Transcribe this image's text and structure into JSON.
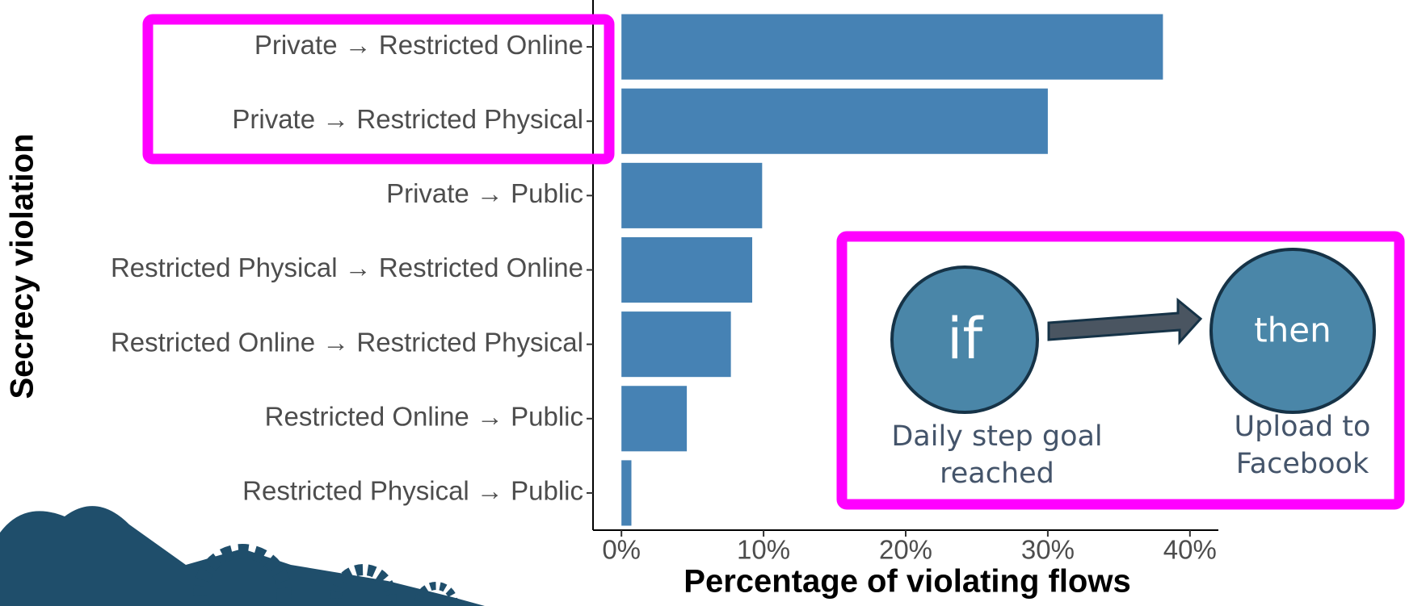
{
  "chart_data": {
    "type": "barh",
    "x_label": "Percentage of violating flows",
    "y_label": "Secrecy violation",
    "categories": [
      "Private → Restricted Online",
      "Private → Restricted Physical",
      "Private → Public",
      "Restricted Physical → Restricted Online",
      "Restricted Online → Restricted Physical",
      "Restricted Online → Public",
      "Restricted Physical → Public"
    ],
    "values": [
      38.1,
      30.0,
      9.9,
      9.2,
      7.7,
      4.6,
      0.7
    ],
    "color": "#4682b4",
    "xlim": [
      -2,
      42
    ],
    "xticks": [
      {
        "value": 0,
        "label": "0%"
      },
      {
        "value": 10,
        "label": "10%"
      },
      {
        "value": 20,
        "label": "20%"
      },
      {
        "value": 30,
        "label": "30%"
      },
      {
        "value": 40,
        "label": "40%"
      }
    ],
    "inset": {
      "if_label": "if",
      "then_label": "then",
      "trigger": [
        "Daily step goal",
        "reached"
      ],
      "action": [
        "Upload to",
        "Facebook"
      ]
    }
  }
}
